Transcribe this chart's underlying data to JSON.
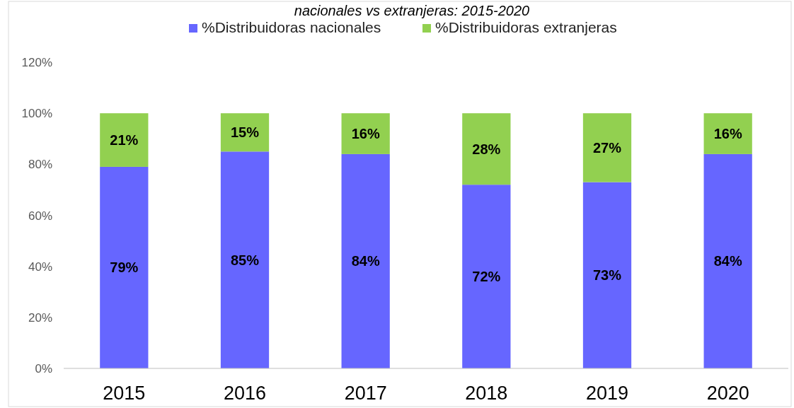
{
  "chart_data": {
    "type": "bar",
    "stacked": true,
    "title": "nacionales vs extranjeras: 2015-2020",
    "categories": [
      "2015",
      "2016",
      "2017",
      "2018",
      "2019",
      "2020"
    ],
    "series": [
      {
        "name": "%Distribuidoras nacionales",
        "color": "#6666ff",
        "values": [
          79,
          85,
          84,
          72,
          73,
          84
        ],
        "value_labels": [
          "79%",
          "85%",
          "84%",
          "72%",
          "73%",
          "84%"
        ]
      },
      {
        "name": "%Distribuidoras extranjeras",
        "color": "#92d050",
        "values": [
          21,
          15,
          16,
          28,
          27,
          16
        ],
        "value_labels": [
          "21%",
          "15%",
          "16%",
          "28%",
          "27%",
          "16%"
        ]
      }
    ],
    "ylim": [
      0,
      120
    ],
    "yticks": [
      {
        "value": 0,
        "label": "0%"
      },
      {
        "value": 20,
        "label": "20%"
      },
      {
        "value": 40,
        "label": "40%"
      },
      {
        "value": 60,
        "label": "60%"
      },
      {
        "value": 80,
        "label": "80%"
      },
      {
        "value": 100,
        "label": "100%"
      },
      {
        "value": 120,
        "label": "120%"
      }
    ],
    "grid": false,
    "legend": "top"
  }
}
